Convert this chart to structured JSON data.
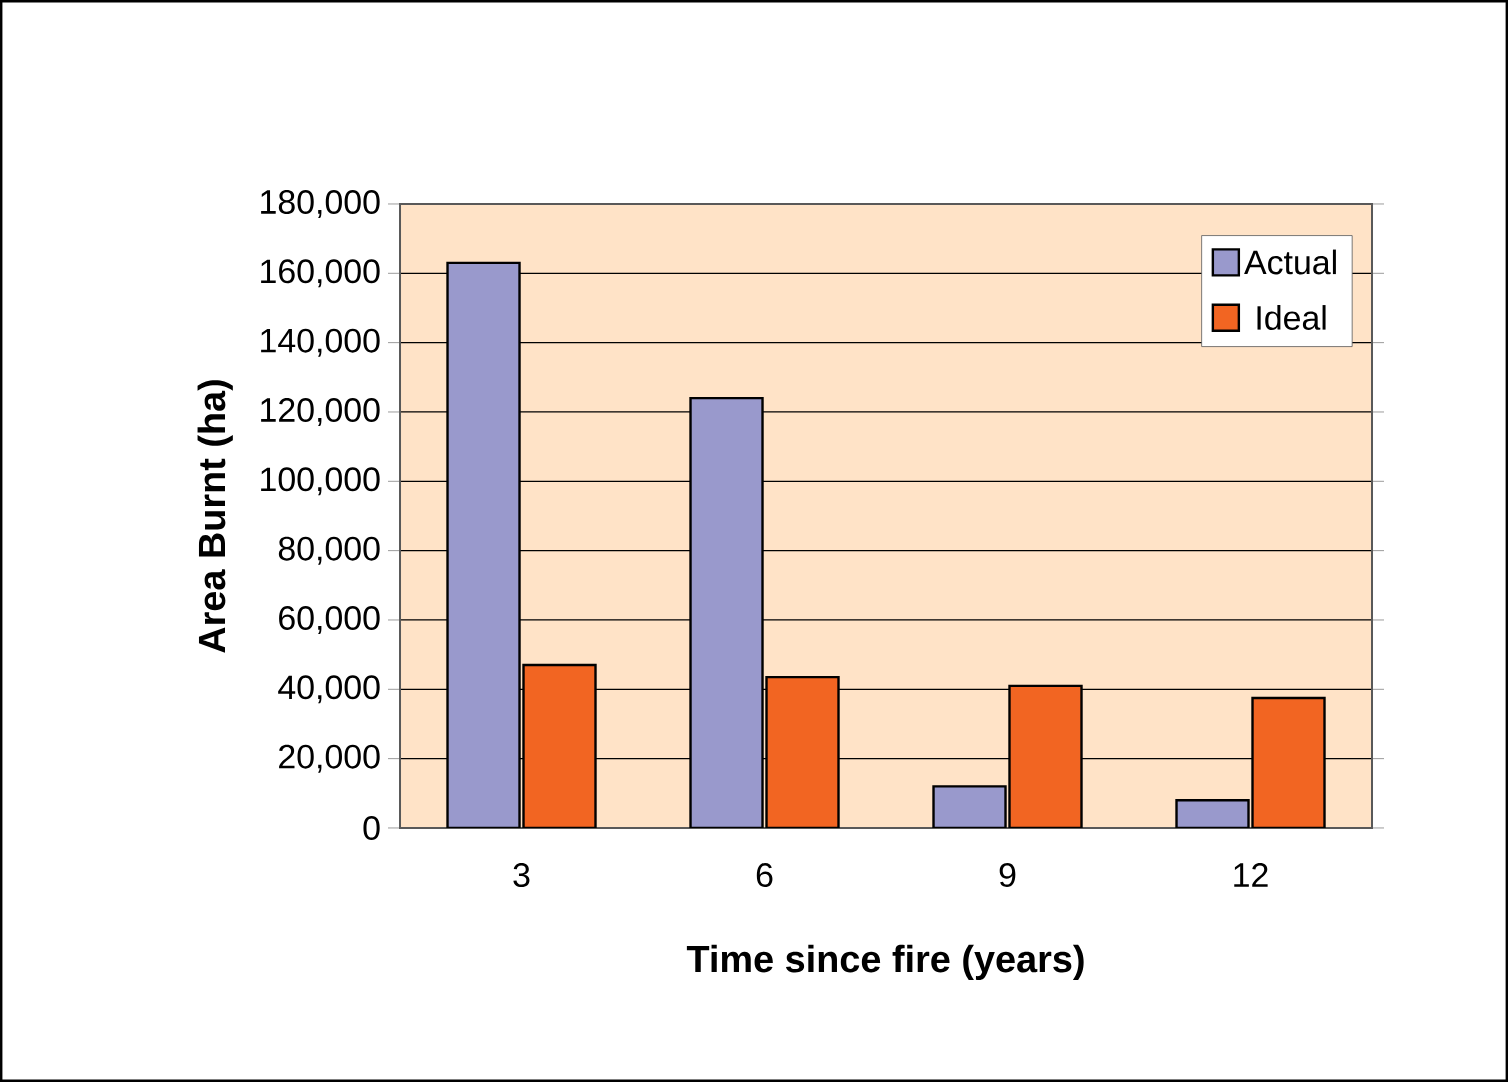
{
  "chart_data": {
    "type": "bar",
    "xlabel": "Time since fire (years)",
    "ylabel": "Area Burnt (ha)",
    "categories": [
      "3",
      "6",
      "9",
      "12"
    ],
    "series": [
      {
        "name": "Actual",
        "color": "#9999cc",
        "values": [
          163000,
          124000,
          12000,
          8000
        ]
      },
      {
        "name": "Ideal",
        "color": "#f26522",
        "values": [
          47000,
          43500,
          41000,
          37500
        ]
      }
    ],
    "ylim": [
      0,
      180000
    ],
    "yticks": [
      0,
      {
        "value": 20000,
        "label": "20,000"
      },
      {
        "value": 40000,
        "label": "40,000"
      },
      {
        "value": 60000,
        "label": "60,000"
      },
      {
        "value": 80000,
        "label": "80,000"
      },
      {
        "value": 100000,
        "label": "100,000"
      },
      {
        "value": 120000,
        "label": "120,000"
      },
      {
        "value": 140000,
        "label": "140,000"
      },
      {
        "value": 160000,
        "label": "160,000"
      },
      {
        "value": 180000,
        "label": "180,000"
      }
    ],
    "grid": "y",
    "legend": "top right"
  }
}
